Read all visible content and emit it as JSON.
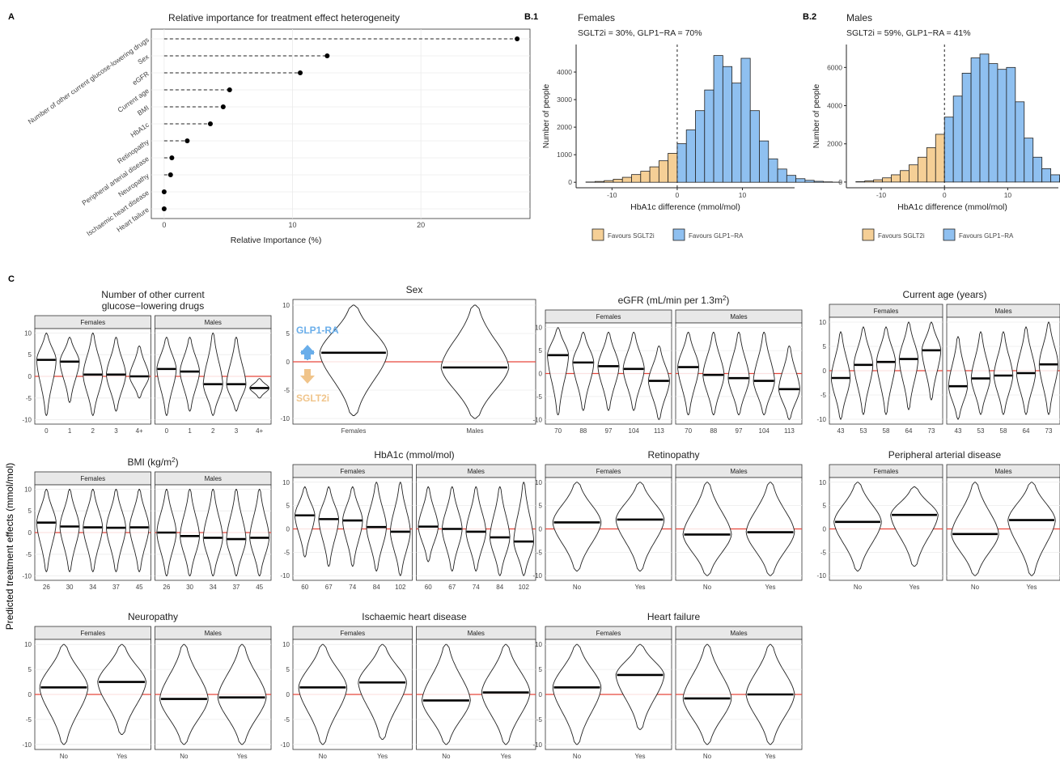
{
  "colors": {
    "sglt2": "#f5cf96",
    "glp1": "#8fc0f0",
    "zero_line": "#e8473c",
    "strip": "#e8e8e8",
    "grid": "#ebebeb",
    "glp1_text": "#6aaeea",
    "sglt2_text": "#f0c48a"
  },
  "panel_letters": {
    "a": "A",
    "b1": "B.1",
    "b2": "B.2",
    "c": "C"
  },
  "shared_ylabel": "Predicted treatment effects (mmol/mol)",
  "arrows": {
    "up_label": "GLP1-RA",
    "down_label": "SGLT2i"
  },
  "chart_data": [
    {
      "id": "importance",
      "type": "scatter",
      "title": "Relative importance for treatment effect heterogeneity",
      "xlabel": "Relative Importance (%)",
      "ylabel": "",
      "categories": [
        "Number of other current glucose-lowering drugs",
        "Sex",
        "eGFR",
        "Current age",
        "BMI",
        "HbA1c",
        "Retinopathy",
        "Peripheral arterial disease",
        "Neuropathy",
        "Ischaemic heart disease",
        "Heart failure"
      ],
      "values": [
        27.5,
        12.7,
        10.6,
        5.1,
        4.6,
        3.6,
        1.8,
        0.6,
        0.5,
        0.0,
        0.0
      ],
      "xticks": [
        0,
        10,
        20
      ],
      "xlim": [
        -1,
        28.5
      ]
    },
    {
      "id": "hist_females",
      "type": "bar",
      "title": "Females",
      "subtitle": "SGLT2i = 30%, GLP1−RA = 70%",
      "xlabel": "HbA1c difference (mmol/mol)",
      "ylabel": "Number of people",
      "bin_start": -14,
      "bin_width": 1.4,
      "counts": [
        10,
        30,
        60,
        110,
        180,
        280,
        400,
        560,
        780,
        1050,
        1400,
        1900,
        2600,
        3350,
        4600,
        4200,
        3600,
        4500,
        2600,
        1500,
        850,
        480,
        250,
        130,
        70,
        35,
        15,
        5
      ],
      "split_at": 0,
      "xticks": [
        -10,
        0,
        10
      ],
      "yticks": [
        0,
        1000,
        2000,
        3000,
        4000
      ],
      "xlim": [
        -15.5,
        18
      ],
      "ylim": [
        -200,
        5000
      ],
      "legend": [
        "Favours SGLT2i",
        "Favours GLP1−RA"
      ]
    },
    {
      "id": "hist_males",
      "type": "bar",
      "title": "Males",
      "subtitle": "SGLT2i = 59%, GLP1−RA = 41%",
      "xlabel": "HbA1c difference (mmol/mol)",
      "ylabel": "Number of people",
      "bin_start": -14,
      "bin_width": 1.4,
      "counts": [
        20,
        60,
        120,
        220,
        380,
        600,
        900,
        1300,
        1800,
        2500,
        3400,
        4500,
        5700,
        6500,
        6700,
        6200,
        5900,
        6000,
        4200,
        2300,
        1300,
        700,
        380,
        200,
        110,
        60,
        30,
        10
      ],
      "split_at": 0,
      "xticks": [
        -10,
        0,
        10
      ],
      "yticks": [
        0,
        2000,
        4000,
        6000
      ],
      "xlim": [
        -15.5,
        18
      ],
      "ylim": [
        -300,
        7200
      ],
      "legend": [
        "Favours SGLT2i",
        "Favours GLP1−RA"
      ]
    },
    {
      "id": "violin_drugs",
      "type": "area",
      "title": "Number of other current",
      "title2": "glucose−lowering drugs",
      "facets": [
        {
          "label": "Females",
          "categories": [
            "0",
            "1",
            "2",
            "3",
            "4+"
          ],
          "medians": [
            3.8,
            3.4,
            0.4,
            0.4,
            0.0
          ],
          "ranges": [
            [
              -9,
              10
            ],
            [
              -6,
              9
            ],
            [
              -9,
              10
            ],
            [
              -8,
              9
            ],
            [
              -5,
              7
            ]
          ]
        },
        {
          "label": "Males",
          "categories": [
            "0",
            "1",
            "2",
            "3",
            "4+"
          ],
          "medians": [
            1.7,
            1.1,
            -1.8,
            -1.8,
            -2.7
          ],
          "ranges": [
            [
              -9,
              9
            ],
            [
              -8,
              9
            ],
            [
              -9,
              10
            ],
            [
              -8,
              9
            ],
            [
              -5,
              -0.5
            ]
          ]
        }
      ],
      "yticks": [
        -10,
        -5,
        0,
        5,
        10
      ],
      "ylim": [
        -11,
        11
      ]
    },
    {
      "id": "violin_sex",
      "type": "area",
      "title": "Sex",
      "facets": [
        {
          "label": "",
          "categories": [
            "Females",
            "Males"
          ],
          "medians": [
            1.6,
            -1.0
          ],
          "ranges": [
            [
              -9.5,
              10
            ],
            [
              -10,
              10
            ]
          ]
        }
      ],
      "yticks": [
        -10,
        -5,
        0,
        5,
        10
      ],
      "ylim": [
        -11,
        11
      ]
    },
    {
      "id": "violin_egfr",
      "type": "area",
      "title": "eGFR (mL/min per 1.3m",
      "title_sup": "2",
      "title_end": ")",
      "facets": [
        {
          "label": "Females",
          "categories": [
            "70",
            "88",
            "97",
            "104",
            "113"
          ],
          "medians": [
            4.0,
            2.4,
            1.6,
            1.0,
            -1.6
          ],
          "ranges": [
            [
              -9,
              10
            ],
            [
              -8,
              9
            ],
            [
              -8,
              9
            ],
            [
              -8,
              9
            ],
            [
              -10,
              6
            ]
          ]
        },
        {
          "label": "Males",
          "categories": [
            "70",
            "88",
            "97",
            "104",
            "113"
          ],
          "medians": [
            1.4,
            -0.3,
            -1.0,
            -1.6,
            -3.4
          ],
          "ranges": [
            [
              -9,
              9
            ],
            [
              -9,
              9
            ],
            [
              -9,
              9
            ],
            [
              -9,
              9
            ],
            [
              -10,
              6
            ]
          ]
        }
      ],
      "yticks": [
        -10,
        -5,
        0,
        5,
        10
      ],
      "ylim": [
        -11,
        11
      ]
    },
    {
      "id": "violin_age",
      "type": "area",
      "title": "Current age (years)",
      "facets": [
        {
          "label": "Females",
          "categories": [
            "43",
            "53",
            "58",
            "64",
            "73"
          ],
          "medians": [
            -1.5,
            1.2,
            1.8,
            2.4,
            4.2
          ],
          "ranges": [
            [
              -10,
              8
            ],
            [
              -9,
              9
            ],
            [
              -9,
              9
            ],
            [
              -8,
              10
            ],
            [
              -6,
              10
            ]
          ]
        },
        {
          "label": "Males",
          "categories": [
            "43",
            "53",
            "58",
            "64",
            "73"
          ],
          "medians": [
            -3.2,
            -1.6,
            -1.0,
            -0.5,
            1.3
          ],
          "ranges": [
            [
              -10,
              7
            ],
            [
              -9,
              8
            ],
            [
              -9,
              8
            ],
            [
              -9,
              9
            ],
            [
              -9,
              10
            ]
          ]
        }
      ],
      "yticks": [
        -10,
        -5,
        0,
        5,
        10
      ],
      "ylim": [
        -11,
        11
      ]
    },
    {
      "id": "violin_bmi",
      "type": "area",
      "title": "BMI (kg/m",
      "title_sup": "2",
      "title_end": ")",
      "facets": [
        {
          "label": "Females",
          "categories": [
            "26",
            "30",
            "34",
            "37",
            "45"
          ],
          "medians": [
            2.3,
            1.4,
            1.2,
            1.1,
            1.2
          ],
          "ranges": [
            [
              -9,
              10
            ],
            [
              -9,
              10
            ],
            [
              -9,
              10
            ],
            [
              -9,
              10
            ],
            [
              -9,
              10
            ]
          ]
        },
        {
          "label": "Males",
          "categories": [
            "26",
            "30",
            "34",
            "37",
            "45"
          ],
          "medians": [
            0.0,
            -0.8,
            -1.2,
            -1.5,
            -1.2
          ],
          "ranges": [
            [
              -10,
              10
            ],
            [
              -10,
              10
            ],
            [
              -10,
              10
            ],
            [
              -10,
              10
            ],
            [
              -10,
              10
            ]
          ]
        }
      ],
      "yticks": [
        -10,
        -5,
        0,
        5,
        10
      ],
      "ylim": [
        -11,
        11
      ]
    },
    {
      "id": "violin_hba1c",
      "type": "area",
      "title": "HbA1c (mmol/mol)",
      "facets": [
        {
          "label": "Females",
          "categories": [
            "60",
            "67",
            "74",
            "84",
            "102"
          ],
          "medians": [
            2.9,
            2.1,
            1.8,
            0.4,
            -0.6
          ],
          "ranges": [
            [
              -6,
              9
            ],
            [
              -8,
              9
            ],
            [
              -8,
              9
            ],
            [
              -9,
              10
            ],
            [
              -10,
              10
            ]
          ]
        },
        {
          "label": "Males",
          "categories": [
            "60",
            "67",
            "74",
            "84",
            "102"
          ],
          "medians": [
            0.5,
            0.0,
            -0.6,
            -1.8,
            -2.7
          ],
          "ranges": [
            [
              -7,
              9
            ],
            [
              -9,
              9
            ],
            [
              -9,
              9
            ],
            [
              -10,
              9
            ],
            [
              -10,
              10
            ]
          ]
        }
      ],
      "yticks": [
        -10,
        -5,
        0,
        5,
        10
      ],
      "ylim": [
        -11,
        11
      ]
    },
    {
      "id": "violin_retino",
      "type": "area",
      "title": "Retinopathy",
      "facets": [
        {
          "label": "Females",
          "categories": [
            "No",
            "Yes"
          ],
          "medians": [
            1.4,
            2.0
          ],
          "ranges": [
            [
              -9,
              10
            ],
            [
              -9,
              10
            ]
          ]
        },
        {
          "label": "Males",
          "categories": [
            "No",
            "Yes"
          ],
          "medians": [
            -1.2,
            -0.7
          ],
          "ranges": [
            [
              -10,
              10
            ],
            [
              -10,
              10
            ]
          ]
        }
      ],
      "yticks": [
        -10,
        -5,
        0,
        5,
        10
      ],
      "ylim": [
        -11,
        11
      ]
    },
    {
      "id": "violin_pad",
      "type": "area",
      "title": "Peripheral arterial disease",
      "facets": [
        {
          "label": "Females",
          "categories": [
            "No",
            "Yes"
          ],
          "medians": [
            1.5,
            3.0
          ],
          "ranges": [
            [
              -9,
              10
            ],
            [
              -8,
              9
            ]
          ]
        },
        {
          "label": "Males",
          "categories": [
            "No",
            "Yes"
          ],
          "medians": [
            -1.1,
            1.9
          ],
          "ranges": [
            [
              -10,
              10
            ],
            [
              -10,
              10
            ]
          ]
        }
      ],
      "yticks": [
        -10,
        -5,
        0,
        5,
        10
      ],
      "ylim": [
        -11,
        11
      ]
    },
    {
      "id": "violin_neuro",
      "type": "area",
      "title": "Neuropathy",
      "facets": [
        {
          "label": "Females",
          "categories": [
            "No",
            "Yes"
          ],
          "medians": [
            1.4,
            2.5
          ],
          "ranges": [
            [
              -10,
              10
            ],
            [
              -8,
              10
            ]
          ]
        },
        {
          "label": "Males",
          "categories": [
            "No",
            "Yes"
          ],
          "medians": [
            -0.9,
            -0.6
          ],
          "ranges": [
            [
              -10,
              10
            ],
            [
              -10,
              10
            ]
          ]
        }
      ],
      "yticks": [
        -10,
        -5,
        0,
        5,
        10
      ],
      "ylim": [
        -11,
        11
      ]
    },
    {
      "id": "violin_ihd",
      "type": "area",
      "title": "Ischaemic heart disease",
      "facets": [
        {
          "label": "Females",
          "categories": [
            "No",
            "Yes"
          ],
          "medians": [
            1.4,
            2.4
          ],
          "ranges": [
            [
              -10,
              10
            ],
            [
              -9,
              10
            ]
          ]
        },
        {
          "label": "Males",
          "categories": [
            "No",
            "Yes"
          ],
          "medians": [
            -1.2,
            0.4
          ],
          "ranges": [
            [
              -10,
              10
            ],
            [
              -10,
              10
            ]
          ]
        }
      ],
      "yticks": [
        -10,
        -5,
        0,
        5,
        10
      ],
      "ylim": [
        -11,
        11
      ]
    },
    {
      "id": "violin_hf",
      "type": "area",
      "title": "Heart failure",
      "facets": [
        {
          "label": "Females",
          "categories": [
            "No",
            "Yes"
          ],
          "medians": [
            1.4,
            3.9
          ],
          "ranges": [
            [
              -10,
              10
            ],
            [
              -7,
              10
            ]
          ]
        },
        {
          "label": "Males",
          "categories": [
            "No",
            "Yes"
          ],
          "medians": [
            -0.8,
            0.0
          ],
          "ranges": [
            [
              -10,
              10
            ],
            [
              -10,
              10
            ]
          ]
        }
      ],
      "yticks": [
        -10,
        -5,
        0,
        5,
        10
      ],
      "ylim": [
        -11,
        11
      ]
    }
  ]
}
